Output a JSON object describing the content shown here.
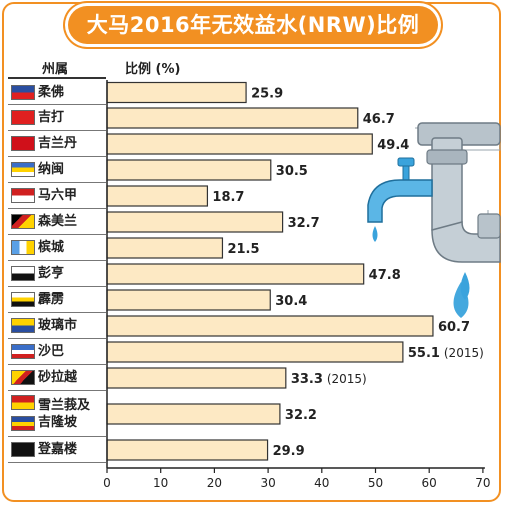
{
  "title": "大马2016年无效益水(NRW)比例",
  "column_header_state": "州属",
  "column_header_ratio": "比例 (%)",
  "icons": [
    "malaysian-state-flag-icon",
    "water-tap-icon",
    "water-pipe-icon",
    "water-drop-icon"
  ],
  "colors": {
    "accent": "#f29022",
    "bar_fill": "#fde9c4",
    "bar_stroke": "#333333",
    "water": "#3aa3dc"
  },
  "chart_data": {
    "type": "bar",
    "orientation": "horizontal",
    "categories": [
      "柔佛",
      "吉打",
      "吉兰丹",
      "纳闽",
      "马六甲",
      "森美兰",
      "槟城",
      "彭亨",
      "霹雳",
      "玻璃市",
      "沙巴",
      "砂拉越",
      "雪兰莪及吉隆坡",
      "登嘉楼"
    ],
    "category_lines": [
      [
        "柔佛"
      ],
      [
        "吉打"
      ],
      [
        "吉兰丹"
      ],
      [
        "纳闽"
      ],
      [
        "马六甲"
      ],
      [
        "森美兰"
      ],
      [
        "槟城"
      ],
      [
        "彭亨"
      ],
      [
        "霹雳"
      ],
      [
        "玻璃市"
      ],
      [
        "沙巴"
      ],
      [
        "砂拉越"
      ],
      [
        "雪兰莪及",
        "吉隆坡"
      ],
      [
        "登嘉楼"
      ]
    ],
    "values": [
      25.9,
      46.7,
      49.4,
      30.5,
      18.7,
      32.7,
      21.5,
      47.8,
      30.4,
      60.7,
      55.1,
      33.3,
      32.2,
      29.9
    ],
    "value_labels": [
      "25.9",
      "46.7",
      "49.4",
      "30.5",
      "18.7",
      "32.7",
      "21.5",
      "47.8",
      "30.4",
      "60.7",
      "55.1",
      "33.3",
      "32.2",
      "29.9"
    ],
    "annotations": [
      "",
      "",
      "",
      "",
      "",
      "",
      "",
      "",
      "",
      "",
      "(2015)",
      "(2015)",
      "",
      ""
    ],
    "xlim": [
      0,
      70
    ],
    "xticks": [
      0,
      10,
      20,
      30,
      40,
      50,
      60,
      70
    ],
    "xlabel": "",
    "ylabel": "比例 (%)",
    "title": "大马2016年无效益水(NRW)比例",
    "grid": false,
    "legend": "none"
  }
}
